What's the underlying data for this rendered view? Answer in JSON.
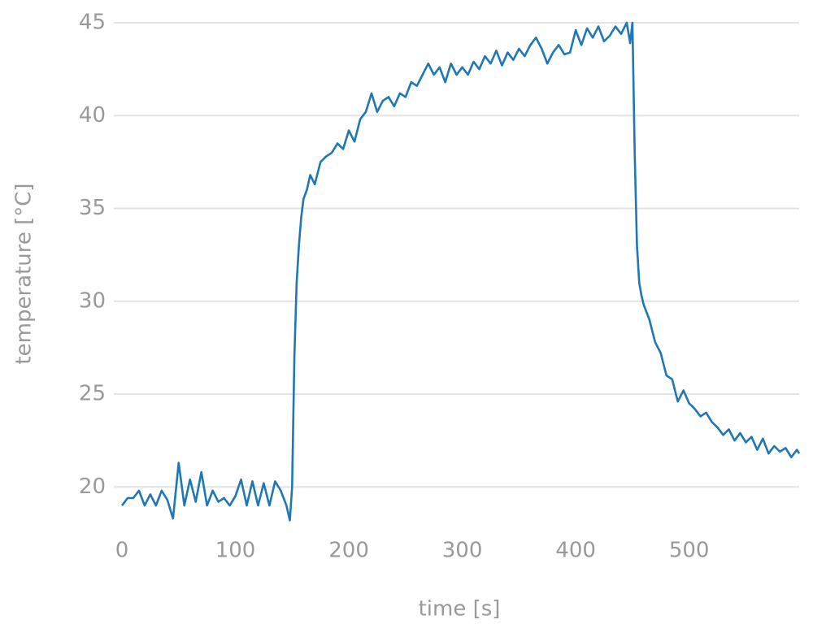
{
  "chart_data": {
    "type": "line",
    "x_label": "time [s]",
    "y_label": "temperature [°C]",
    "xlim": [
      0,
      597
    ],
    "ylim": [
      18,
      45
    ],
    "xticks": [
      0,
      100,
      200,
      300,
      400,
      500
    ],
    "yticks": [
      20,
      25,
      30,
      35,
      40,
      45
    ],
    "grid": true,
    "series": [
      {
        "color": "#1f77b4",
        "x": [
          0,
          5,
          10,
          15,
          20,
          25,
          30,
          35,
          40,
          45,
          50,
          55,
          60,
          65,
          70,
          75,
          80,
          85,
          90,
          95,
          100,
          105,
          110,
          115,
          120,
          125,
          130,
          135,
          140,
          145,
          148,
          150,
          152,
          154,
          156,
          158,
          160,
          163,
          166,
          170,
          175,
          180,
          185,
          190,
          195,
          200,
          205,
          210,
          215,
          220,
          225,
          230,
          235,
          240,
          245,
          250,
          255,
          260,
          265,
          270,
          275,
          280,
          285,
          290,
          295,
          300,
          305,
          310,
          315,
          320,
          325,
          330,
          335,
          340,
          345,
          350,
          355,
          360,
          365,
          370,
          375,
          380,
          385,
          390,
          395,
          400,
          405,
          410,
          415,
          420,
          425,
          430,
          435,
          440,
          445,
          448,
          450,
          452,
          454,
          456,
          458,
          460,
          465,
          470,
          475,
          480,
          485,
          490,
          495,
          500,
          505,
          510,
          515,
          520,
          525,
          530,
          535,
          540,
          545,
          550,
          555,
          560,
          565,
          570,
          575,
          580,
          585,
          590,
          595,
          597
        ],
        "values": [
          19.0,
          19.4,
          19.4,
          19.8,
          19.0,
          19.6,
          19.0,
          19.8,
          19.3,
          18.3,
          21.3,
          19.0,
          20.4,
          19.2,
          20.8,
          19.0,
          19.8,
          19.2,
          19.4,
          19.0,
          19.5,
          20.4,
          19.0,
          20.3,
          19.0,
          20.2,
          19.0,
          20.3,
          19.8,
          19.0,
          18.2,
          20.0,
          27.0,
          31.0,
          33.0,
          34.5,
          35.5,
          36.0,
          36.8,
          36.3,
          37.5,
          37.8,
          38.0,
          38.5,
          38.2,
          39.2,
          38.6,
          39.8,
          40.2,
          41.2,
          40.2,
          40.8,
          41.0,
          40.5,
          41.2,
          41.0,
          41.8,
          41.6,
          42.2,
          42.8,
          42.2,
          42.6,
          41.8,
          42.8,
          42.2,
          42.6,
          42.2,
          42.9,
          42.5,
          43.2,
          42.8,
          43.5,
          42.7,
          43.4,
          43.0,
          43.6,
          43.2,
          43.8,
          44.2,
          43.6,
          42.8,
          43.4,
          43.8,
          43.3,
          43.4,
          44.6,
          43.8,
          44.7,
          44.2,
          44.8,
          44.0,
          44.3,
          44.8,
          44.4,
          45.0,
          43.9,
          45.0,
          38.0,
          33.0,
          31.0,
          30.3,
          29.8,
          29.0,
          27.8,
          27.2,
          26.0,
          25.8,
          24.6,
          25.2,
          24.5,
          24.2,
          23.8,
          24.0,
          23.5,
          23.2,
          22.8,
          23.1,
          22.5,
          22.9,
          22.4,
          22.7,
          22.0,
          22.6,
          21.8,
          22.2,
          21.9,
          22.1,
          21.6,
          22.0,
          21.8
        ]
      }
    ]
  }
}
